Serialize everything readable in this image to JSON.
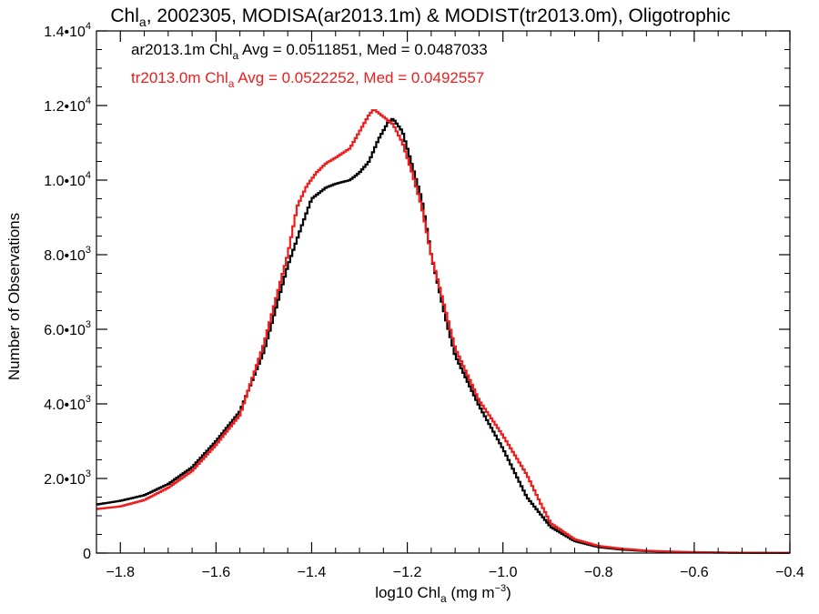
{
  "chart_data": {
    "type": "line",
    "title": {
      "prefix": "Chl",
      "sub": "a",
      "rest": ", 2002305, MODISA(ar2013.1m) & MODIST(tr2013.0m), Oligotrophic"
    },
    "xlabel": {
      "prefix": "log10 Chl",
      "sub": "a",
      "mid": " (mg m",
      "sup": "−3",
      "end": ")"
    },
    "ylabel": "Number of Observations",
    "xlim": [
      -1.85,
      -0.4
    ],
    "ylim": [
      0,
      14000
    ],
    "x_ticks": [
      {
        "value": -1.8,
        "label": "−1.8"
      },
      {
        "value": -1.6,
        "label": "−1.6"
      },
      {
        "value": -1.4,
        "label": "−1.4"
      },
      {
        "value": -1.2,
        "label": "−1.2"
      },
      {
        "value": -1.0,
        "label": "−1.0"
      },
      {
        "value": -0.8,
        "label": "−0.8"
      },
      {
        "value": -0.6,
        "label": "−0.6"
      },
      {
        "value": -0.4,
        "label": "−0.4"
      }
    ],
    "y_ticks": [
      {
        "value": 0,
        "mantissa": "0",
        "exp": ""
      },
      {
        "value": 2000,
        "mantissa": "2.0•10",
        "exp": "3"
      },
      {
        "value": 4000,
        "mantissa": "4.0•10",
        "exp": "3"
      },
      {
        "value": 6000,
        "mantissa": "6.0•10",
        "exp": "3"
      },
      {
        "value": 8000,
        "mantissa": "8.0•10",
        "exp": "3"
      },
      {
        "value": 10000,
        "mantissa": "1.0•10",
        "exp": "4"
      },
      {
        "value": 12000,
        "mantissa": "1.2•10",
        "exp": "4"
      },
      {
        "value": 14000,
        "mantissa": "1.4•10",
        "exp": "4"
      }
    ],
    "grid": false,
    "legend": {
      "placement": "top-left",
      "entries": [
        {
          "prefix": "ar2013.1m Chl",
          "sub": "a",
          "rest": " Avg = 0.0511851, Med = 0.0487033",
          "color": "#000000"
        },
        {
          "prefix": "tr2013.0m Chl",
          "sub": "a",
          "rest": " Avg = 0.0522252, Med = 0.0492557",
          "color": "#ee1c1c"
        }
      ]
    },
    "series": [
      {
        "color": "#000000",
        "points": [
          [
            -1.85,
            1300
          ],
          [
            -1.8,
            1400
          ],
          [
            -1.75,
            1550
          ],
          [
            -1.7,
            1850
          ],
          [
            -1.65,
            2300
          ],
          [
            -1.6,
            3000
          ],
          [
            -1.55,
            3800
          ],
          [
            -1.5,
            5400
          ],
          [
            -1.45,
            7700
          ],
          [
            -1.42,
            8800
          ],
          [
            -1.4,
            9500
          ],
          [
            -1.37,
            9800
          ],
          [
            -1.35,
            9900
          ],
          [
            -1.32,
            10000
          ],
          [
            -1.3,
            10200
          ],
          [
            -1.28,
            10500
          ],
          [
            -1.26,
            11100
          ],
          [
            -1.24,
            11550
          ],
          [
            -1.23,
            11650
          ],
          [
            -1.21,
            11300
          ],
          [
            -1.19,
            10400
          ],
          [
            -1.17,
            9500
          ],
          [
            -1.15,
            8000
          ],
          [
            -1.12,
            6300
          ],
          [
            -1.1,
            5300
          ],
          [
            -1.05,
            3950
          ],
          [
            -1.0,
            2800
          ],
          [
            -0.95,
            1500
          ],
          [
            -0.9,
            700
          ],
          [
            -0.85,
            320
          ],
          [
            -0.8,
            160
          ],
          [
            -0.75,
            90
          ],
          [
            -0.7,
            55
          ],
          [
            -0.65,
            32
          ],
          [
            -0.6,
            20
          ],
          [
            -0.55,
            12
          ],
          [
            -0.5,
            8
          ],
          [
            -0.45,
            5
          ],
          [
            -0.4,
            3
          ]
        ]
      },
      {
        "color": "#ee1c1c",
        "points": [
          [
            -1.85,
            1180
          ],
          [
            -1.8,
            1250
          ],
          [
            -1.75,
            1420
          ],
          [
            -1.7,
            1750
          ],
          [
            -1.65,
            2200
          ],
          [
            -1.6,
            2900
          ],
          [
            -1.55,
            3700
          ],
          [
            -1.5,
            5600
          ],
          [
            -1.45,
            8000
          ],
          [
            -1.43,
            9300
          ],
          [
            -1.41,
            9850
          ],
          [
            -1.39,
            10200
          ],
          [
            -1.37,
            10450
          ],
          [
            -1.35,
            10600
          ],
          [
            -1.32,
            10850
          ],
          [
            -1.3,
            11300
          ],
          [
            -1.28,
            11750
          ],
          [
            -1.27,
            11900
          ],
          [
            -1.25,
            11700
          ],
          [
            -1.23,
            11500
          ],
          [
            -1.21,
            11000
          ],
          [
            -1.19,
            10200
          ],
          [
            -1.17,
            9300
          ],
          [
            -1.15,
            8000
          ],
          [
            -1.12,
            6500
          ],
          [
            -1.1,
            5500
          ],
          [
            -1.05,
            4100
          ],
          [
            -1.0,
            3150
          ],
          [
            -0.95,
            2100
          ],
          [
            -0.92,
            1300
          ],
          [
            -0.9,
            800
          ],
          [
            -0.85,
            370
          ],
          [
            -0.8,
            190
          ],
          [
            -0.75,
            115
          ],
          [
            -0.7,
            65
          ],
          [
            -0.65,
            40
          ],
          [
            -0.6,
            25
          ],
          [
            -0.55,
            16
          ],
          [
            -0.5,
            10
          ],
          [
            -0.45,
            6
          ],
          [
            -0.4,
            4
          ]
        ]
      }
    ]
  }
}
